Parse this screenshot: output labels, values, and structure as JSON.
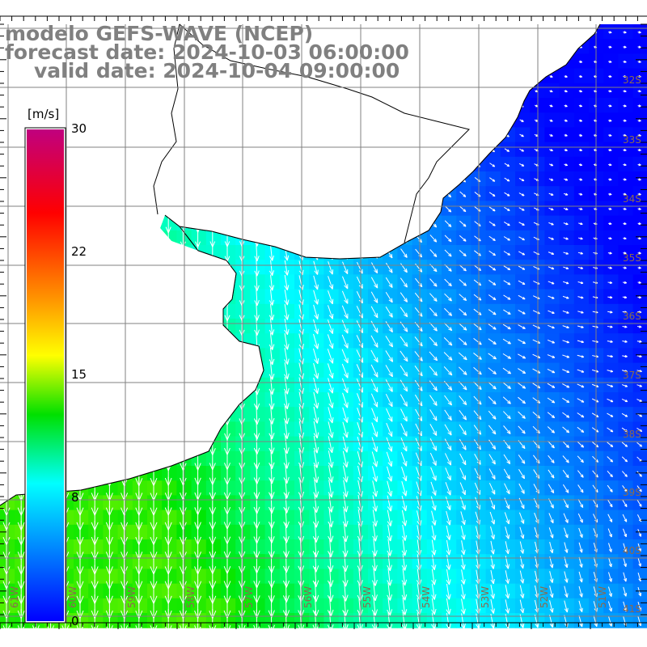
{
  "title": {
    "line1": "modelo GEFS-WAVE (NCEP)",
    "line2": "forecast date: 2024-10-03 06:00:00",
    "line3": "valid date: 2024-10-04 09:00:00"
  },
  "colorbar": {
    "unit": "[m/s]",
    "ticks": [
      "30",
      "22",
      "15",
      "8",
      "0"
    ],
    "colors": [
      "#c0007f",
      "#ff0000",
      "#ff9900",
      "#ffff00",
      "#00e000",
      "#00ffff",
      "#0000ff"
    ]
  },
  "map": {
    "lat_labels": [
      "32S",
      "33S",
      "34S",
      "35S",
      "36S",
      "37S",
      "38S",
      "39S",
      "40S",
      "41S"
    ],
    "lon_labels": [
      "61W",
      "60W",
      "59W",
      "58W",
      "57W",
      "56W",
      "55W",
      "54W",
      "53W",
      "52W",
      "51W"
    ],
    "land_color": "#ffffff",
    "grid_color": "#808080"
  }
}
